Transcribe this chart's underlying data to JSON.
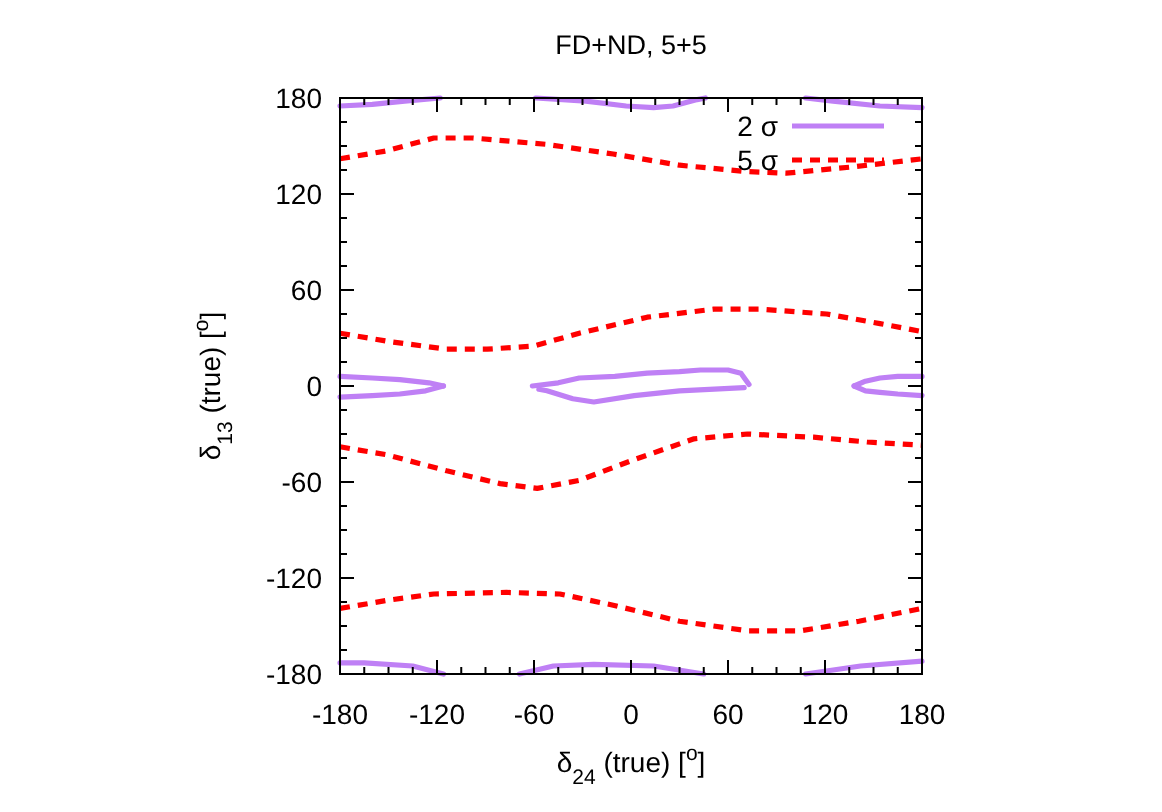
{
  "chart_data": {
    "type": "line",
    "title": "FD+ND, 5+5",
    "xlabel": "δ$_{24}$ (true) [$^{o}$]",
    "ylabel": "δ$_{13}$ (true) [$^{o}$]",
    "xlim": [
      -180,
      180
    ],
    "ylim": [
      -180,
      180
    ],
    "xticks": [
      -180,
      {
        "value": -165,
        "label": null
      },
      {
        "value": -150,
        "label": null
      },
      {
        "value": -135,
        "label": null
      },
      -120,
      {
        "value": -105,
        "label": null
      },
      {
        "value": -90,
        "label": null
      },
      {
        "value": -75,
        "label": null
      },
      -60,
      {
        "value": -45,
        "label": null
      },
      {
        "value": -30,
        "label": null
      },
      {
        "value": -15,
        "label": null
      },
      0,
      {
        "value": 15,
        "label": null
      },
      {
        "value": 30,
        "label": null
      },
      {
        "value": 45,
        "label": null
      },
      60,
      {
        "value": 75,
        "label": null
      },
      {
        "value": 90,
        "label": null
      },
      {
        "value": 105,
        "label": null
      },
      120,
      {
        "value": 135,
        "label": null
      },
      {
        "value": 150,
        "label": null
      },
      {
        "value": 165,
        "label": null
      },
      180
    ],
    "yticks": [
      -180,
      {
        "value": -165,
        "label": null
      },
      {
        "value": -150,
        "label": null
      },
      {
        "value": -135,
        "label": null
      },
      -120,
      {
        "value": -105,
        "label": null
      },
      {
        "value": -90,
        "label": null
      },
      {
        "value": -75,
        "label": null
      },
      -60,
      {
        "value": -45,
        "label": null
      },
      {
        "value": -30,
        "label": null
      },
      {
        "value": -15,
        "label": null
      },
      0,
      {
        "value": 15,
        "label": null
      },
      {
        "value": 30,
        "label": null
      },
      {
        "value": 45,
        "label": null
      },
      60,
      {
        "value": 75,
        "label": null
      },
      {
        "value": 90,
        "label": null
      },
      {
        "value": 105,
        "label": null
      },
      120,
      {
        "value": 135,
        "label": null
      },
      {
        "value": 150,
        "label": null
      },
      {
        "value": 165,
        "label": null
      },
      180
    ],
    "legend": "top right",
    "series": [
      {
        "name": "2 σ",
        "color": "#bf80f5",
        "line_style": "solid",
        "x": [
          -61,
          -45,
          -32,
          -10,
          10,
          30,
          43,
          60,
          68,
          73
        ],
        "values": [
          0,
          2,
          5,
          6,
          8,
          9,
          10,
          10,
          8,
          1
        ]
      },
      {
        "name": "5 σ",
        "color": "#ff0000",
        "line_style": "dashed",
        "x": [
          -180,
          -151,
          -122,
          -98,
          -52,
          -11,
          30,
          72,
          96,
          138,
          180
        ],
        "values": [
          142,
          147,
          155,
          155,
          151,
          145,
          138,
          134,
          133,
          137,
          142
        ]
      },
      {
        "color": "#bf80f5",
        "line_style": "solid",
        "x": [
          -57,
          -52,
          -36,
          -23,
          2,
          30,
          70
        ],
        "values": [
          -2,
          -3,
          -8,
          -10,
          -6,
          -3,
          -1
        ]
      },
      {
        "color": "#bf80f5",
        "line_style": "solid",
        "x": [
          -180,
          -160,
          -140,
          -118
        ],
        "values": [
          175,
          176,
          178,
          180
        ]
      },
      {
        "color": "#bf80f5",
        "line_style": "solid",
        "x": [
          -59,
          -28,
          -3,
          14,
          26,
          41,
          46
        ],
        "values": [
          180,
          178,
          175,
          174,
          175,
          179,
          180
        ]
      },
      {
        "color": "#bf80f5",
        "line_style": "solid",
        "x": [
          108,
          125,
          154,
          180
        ],
        "values": [
          180,
          178,
          175,
          174
        ]
      },
      {
        "color": "#bf80f5",
        "line_style": "solid",
        "x": [
          -180,
          -160,
          -143,
          -125,
          -116
        ],
        "values": [
          6,
          5,
          4,
          2,
          0
        ]
      },
      {
        "color": "#bf80f5",
        "line_style": "solid",
        "x": [
          -180,
          -160,
          -143,
          -127,
          -116
        ],
        "values": [
          -7,
          -6,
          -5,
          -3,
          0
        ]
      },
      {
        "color": "#bf80f5",
        "line_style": "solid",
        "x": [
          138,
          145,
          154,
          165,
          180
        ],
        "values": [
          0,
          3,
          5,
          6,
          6
        ]
      },
      {
        "color": "#bf80f5",
        "line_style": "solid",
        "x": [
          138,
          145,
          154,
          165,
          180
        ],
        "values": [
          0,
          -3,
          -4,
          -5,
          -6
        ]
      },
      {
        "color": "#bf80f5",
        "line_style": "solid",
        "x": [
          -180,
          -165,
          -135,
          -116
        ],
        "values": [
          -173,
          -173,
          -175,
          -180
        ]
      },
      {
        "color": "#bf80f5",
        "line_style": "solid",
        "x": [
          -69,
          -48,
          -23,
          14,
          45
        ],
        "values": [
          -180,
          -175,
          -174,
          -175,
          -180
        ]
      },
      {
        "color": "#bf80f5",
        "line_style": "solid",
        "x": [
          108,
          142,
          180
        ],
        "values": [
          -180,
          -175,
          -172
        ]
      },
      {
        "color": "#ff0000",
        "line_style": "dashed",
        "x": [
          -180,
          -151,
          -114,
          -89,
          -60,
          -32,
          10,
          51,
          80,
          121,
          154,
          180
        ],
        "values": [
          33,
          28,
          23,
          23,
          25,
          33,
          43,
          48,
          48,
          45,
          39,
          34
        ]
      },
      {
        "color": "#ff0000",
        "line_style": "dashed",
        "x": [
          -180,
          -151,
          -114,
          -81,
          -58,
          -32,
          2,
          39,
          72,
          113,
          146,
          180
        ],
        "values": [
          -38,
          -43,
          -53,
          -61,
          -64,
          -59,
          -46,
          -33,
          -30,
          -32,
          -35,
          -37
        ]
      },
      {
        "color": "#ff0000",
        "line_style": "dashed",
        "x": [
          -180,
          -151,
          -122,
          -77,
          -44,
          -11,
          30,
          72,
          105,
          141,
          180
        ],
        "values": [
          -139,
          -134,
          -130,
          -129,
          -130,
          -137,
          -147,
          -153,
          -153,
          -147,
          -139
        ]
      }
    ]
  }
}
